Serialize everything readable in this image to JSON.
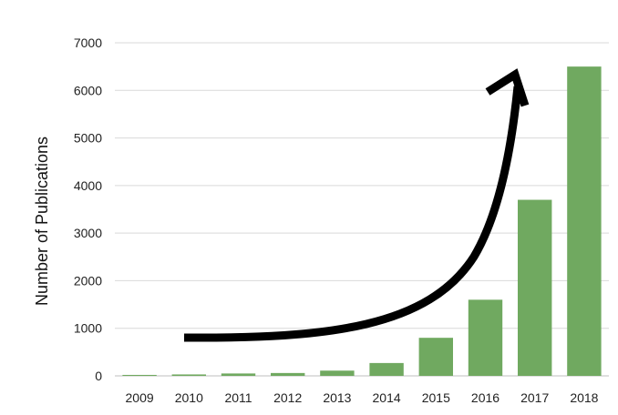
{
  "chart_data": {
    "type": "bar",
    "title": "",
    "xlabel": "",
    "ylabel": "Number of Publications",
    "categories": [
      "2009",
      "2010",
      "2011",
      "2012",
      "2013",
      "2014",
      "2015",
      "2016",
      "2017",
      "2018"
    ],
    "values": [
      20,
      30,
      50,
      60,
      110,
      270,
      800,
      1600,
      3700,
      6500
    ],
    "ylim": [
      0,
      7000
    ],
    "yticks": [
      "0",
      "1000",
      "2000",
      "3000",
      "4000",
      "5000",
      "6000",
      "7000"
    ],
    "grid": true,
    "legend": "none",
    "bar_color": "#70a960",
    "annotation": "curved-arrow-trend-up"
  }
}
